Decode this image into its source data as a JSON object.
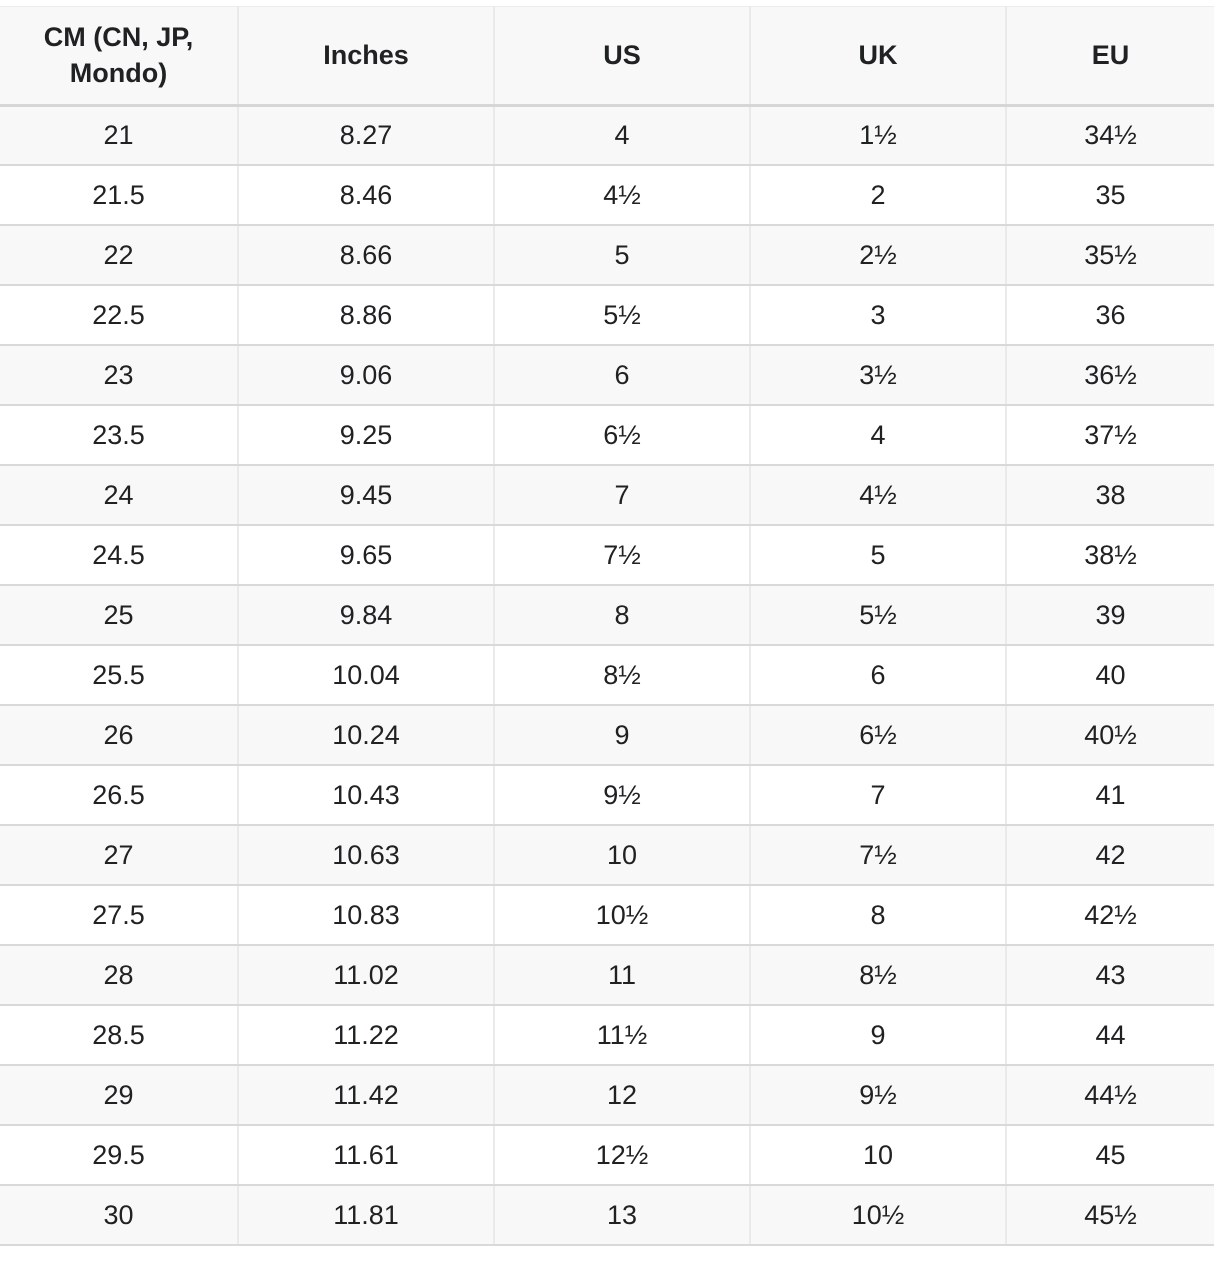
{
  "table": {
    "columns": [
      "CM (CN, JP, Mondo)",
      "Inches",
      "US",
      "UK",
      "EU"
    ],
    "rows": [
      [
        "21",
        "8.27",
        "4",
        "1½",
        "34½"
      ],
      [
        "21.5",
        "8.46",
        "4½",
        "2",
        "35"
      ],
      [
        "22",
        "8.66",
        "5",
        "2½",
        "35½"
      ],
      [
        "22.5",
        "8.86",
        "5½",
        "3",
        "36"
      ],
      [
        "23",
        "9.06",
        "6",
        "3½",
        "36½"
      ],
      [
        "23.5",
        "9.25",
        "6½",
        "4",
        "37½"
      ],
      [
        "24",
        "9.45",
        "7",
        "4½",
        "38"
      ],
      [
        "24.5",
        "9.65",
        "7½",
        "5",
        "38½"
      ],
      [
        "25",
        "9.84",
        "8",
        "5½",
        "39"
      ],
      [
        "25.5",
        "10.04",
        "8½",
        "6",
        "40"
      ],
      [
        "26",
        "10.24",
        "9",
        "6½",
        "40½"
      ],
      [
        "26.5",
        "10.43",
        "9½",
        "7",
        "41"
      ],
      [
        "27",
        "10.63",
        "10",
        "7½",
        "42"
      ],
      [
        "27.5",
        "10.83",
        "10½",
        "8",
        "42½"
      ],
      [
        "28",
        "11.02",
        "11",
        "8½",
        "43"
      ],
      [
        "28.5",
        "11.22",
        "11½",
        "9",
        "44"
      ],
      [
        "29",
        "11.42",
        "12",
        "9½",
        "44½"
      ],
      [
        "29.5",
        "11.61",
        "12½",
        "10",
        "45"
      ],
      [
        "30",
        "11.81",
        "13",
        "10½",
        "45½"
      ]
    ]
  },
  "colors": {
    "header_bg": "#f8f8f8",
    "row_alt_bg": "#f8f8f8",
    "row_bg": "#ffffff",
    "border_horizontal": "#d9d9d9",
    "border_vertical": "#eaeaea",
    "text": "#202122"
  }
}
